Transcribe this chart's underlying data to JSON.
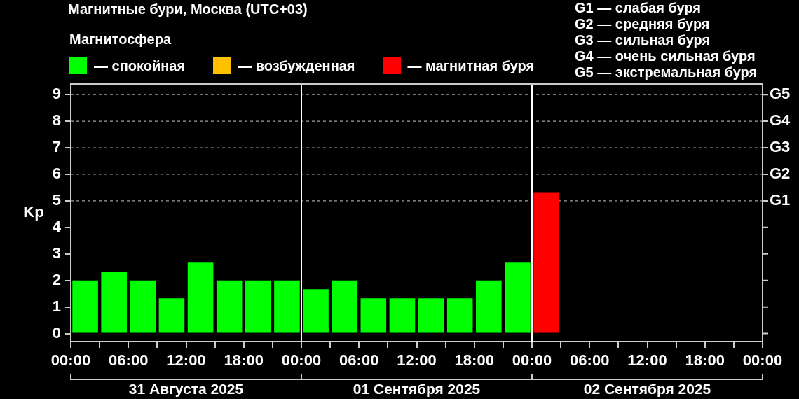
{
  "chart_data": {
    "type": "bar",
    "title": "Магнитные бури, Москва (UTC+03)",
    "legend_title": "Магнитосфера",
    "ylabel": "Kp",
    "legend": "top left",
    "x": [
      "2025-08-31T01:30",
      "2025-08-31T04:30",
      "2025-08-31T07:30",
      "2025-08-31T10:30",
      "2025-08-31T13:30",
      "2025-08-31T16:30",
      "2025-08-31T19:30",
      "2025-08-31T22:30",
      "2025-09-01T01:30",
      "2025-09-01T04:30",
      "2025-09-01T07:30",
      "2025-09-01T10:30",
      "2025-09-01T13:30",
      "2025-09-01T16:30",
      "2025-09-01T19:30",
      "2025-09-01T22:30",
      "2025-09-02T01:30"
    ],
    "series": [
      {
        "name": "— спокойная",
        "color": "#00ff00",
        "values": [
          2,
          2.33,
          2,
          1.33,
          2.67,
          2,
          2,
          2,
          1.67,
          2,
          1.33,
          1.33,
          1.33,
          1.33,
          2,
          2.67,
          null
        ]
      },
      {
        "name": "— возбужденная",
        "color": "#ffc000",
        "values": [
          null,
          null,
          null,
          null,
          null,
          null,
          null,
          null,
          null,
          null,
          null,
          null,
          null,
          null,
          null,
          null,
          null
        ]
      },
      {
        "name": "— магнитная буря",
        "color": "#ff0000",
        "values": [
          null,
          null,
          null,
          null,
          null,
          null,
          null,
          null,
          null,
          null,
          null,
          null,
          null,
          null,
          null,
          null,
          5.33
        ]
      }
    ],
    "xlim": [
      "2025-08-31T00:00",
      "2025-09-03T00:00"
    ],
    "xticks": [
      {
        "value": "2025-08-31T00:00",
        "label": "00:00"
      },
      {
        "value": "2025-08-31T03:00",
        "label": null
      },
      {
        "value": "2025-08-31T06:00",
        "label": "06:00"
      },
      {
        "value": "2025-08-31T09:00",
        "label": null
      },
      {
        "value": "2025-08-31T12:00",
        "label": "12:00"
      },
      {
        "value": "2025-08-31T15:00",
        "label": null
      },
      {
        "value": "2025-08-31T18:00",
        "label": "18:00"
      },
      {
        "value": "2025-08-31T21:00",
        "label": null
      },
      {
        "value": "2025-09-01T00:00",
        "label": "00:00"
      },
      {
        "value": "2025-09-01T03:00",
        "label": null
      },
      {
        "value": "2025-09-01T06:00",
        "label": "06:00"
      },
      {
        "value": "2025-09-01T09:00",
        "label": null
      },
      {
        "value": "2025-09-01T12:00",
        "label": "12:00"
      },
      {
        "value": "2025-09-01T15:00",
        "label": null
      },
      {
        "value": "2025-09-01T18:00",
        "label": "18:00"
      },
      {
        "value": "2025-09-01T21:00",
        "label": null
      },
      {
        "value": "2025-09-02T00:00",
        "label": "00:00"
      },
      {
        "value": "2025-09-02T03:00",
        "label": null
      },
      {
        "value": "2025-09-02T06:00",
        "label": "06:00"
      },
      {
        "value": "2025-09-02T09:00",
        "label": null
      },
      {
        "value": "2025-09-02T12:00",
        "label": "12:00"
      },
      {
        "value": "2025-09-02T15:00",
        "label": null
      },
      {
        "value": "2025-09-02T18:00",
        "label": "18:00"
      },
      {
        "value": "2025-09-02T21:00",
        "label": null
      },
      {
        "value": "2025-09-03T00:00",
        "label": "00:00"
      }
    ],
    "x2lim": [
      "2025-08-31T00:00",
      "2025-09-03T00:00"
    ],
    "x2ticks": [
      {
        "value": "2025-08-31T00:00",
        "label": null
      },
      {
        "value": "2025-08-31T12:00",
        "label": "31 Августа 2025"
      },
      {
        "value": "2025-09-01T00:00",
        "label": null
      },
      {
        "value": "2025-09-01T12:00",
        "label": "01 Сентября 2025"
      },
      {
        "value": "2025-09-02T00:00",
        "label": null
      },
      {
        "value": "2025-09-02T12:00",
        "label": "02 Сентября 2025"
      },
      {
        "value": "2025-09-03T00:00",
        "label": null
      }
    ],
    "ylim": [
      -0.3,
      9.4
    ],
    "yticks": [
      0,
      1,
      2,
      3,
      4,
      5,
      6,
      7,
      8,
      9
    ],
    "ref_lines": [
      {
        "axis": "y",
        "value": 5,
        "label": "G1",
        "color": "#a0a0a0",
        "line_style": "dashed"
      },
      {
        "axis": "y",
        "value": 6,
        "label": "G2",
        "color": "#a0a0a0",
        "line_style": "dashed"
      },
      {
        "axis": "y",
        "value": 7,
        "label": "G3",
        "color": "#a0a0a0",
        "line_style": "dashed"
      },
      {
        "axis": "y",
        "value": 8,
        "label": "G4",
        "color": "#a0a0a0",
        "line_style": "dashed"
      },
      {
        "axis": "y",
        "value": 9,
        "label": "G5",
        "color": "#a0a0a0",
        "line_style": "dashed"
      },
      {
        "axis": "x",
        "value": "2025-09-01T00:00",
        "color": "#ffffff",
        "line_style": "solid"
      },
      {
        "axis": "x",
        "value": "2025-09-02T00:00",
        "color": "#ffffff",
        "line_style": "solid"
      }
    ],
    "annotations": [
      "G1 — слабая буря",
      "G2 — средняя буря",
      "G3 — сильная буря",
      "G4 — очень сильная буря",
      "G5 — экстремальная буря"
    ]
  }
}
